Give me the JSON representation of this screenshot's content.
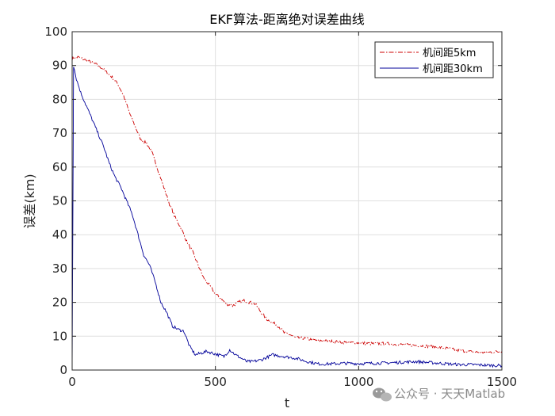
{
  "chart_data": {
    "type": "line",
    "title": "EKF算法-距离绝对误差曲线",
    "xlabel": "t",
    "ylabel": "误差(km)",
    "xlim": [
      0,
      1500
    ],
    "ylim": [
      0,
      100
    ],
    "xticks": [
      0,
      500,
      1000,
      1500
    ],
    "yticks": [
      0,
      10,
      20,
      30,
      40,
      50,
      60,
      70,
      80,
      90,
      100
    ],
    "grid": true,
    "legend_position": "top-right",
    "series": [
      {
        "name": "机间距5km",
        "color": "#cc0000",
        "style": "dash-dot",
        "x": [
          0,
          20,
          50,
          80,
          100,
          120,
          140,
          160,
          180,
          200,
          220,
          240,
          260,
          280,
          300,
          320,
          340,
          360,
          380,
          400,
          420,
          440,
          460,
          480,
          500,
          520,
          540,
          560,
          580,
          600,
          620,
          640,
          660,
          680,
          700,
          720,
          740,
          760,
          780,
          800,
          850,
          900,
          950,
          1000,
          1050,
          1100,
          1150,
          1200,
          1250,
          1300,
          1350,
          1400,
          1450,
          1500
        ],
        "y": [
          92,
          92.5,
          91.5,
          90.5,
          89.5,
          88,
          86.5,
          84.5,
          81,
          76,
          72,
          68,
          67,
          64,
          59,
          54,
          49,
          45,
          42,
          38,
          35,
          31,
          27,
          25,
          22.5,
          21,
          19.5,
          19,
          20,
          20.5,
          20,
          19.5,
          17,
          15,
          14,
          13,
          11,
          10.5,
          9.5,
          9.5,
          8.8,
          8.5,
          8.2,
          8,
          7.8,
          7.8,
          7.5,
          7.3,
          7,
          6.5,
          5.8,
          5.3,
          5.2,
          5.5
        ]
      },
      {
        "name": "机间距30km",
        "color": "#000099",
        "style": "solid",
        "x": [
          0,
          5,
          15,
          30,
          50,
          70,
          90,
          110,
          130,
          150,
          170,
          190,
          210,
          230,
          250,
          270,
          290,
          310,
          330,
          350,
          370,
          390,
          410,
          430,
          450,
          470,
          490,
          510,
          530,
          550,
          570,
          590,
          610,
          630,
          660,
          700,
          740,
          780,
          820,
          860,
          900,
          950,
          1000,
          1050,
          1100,
          1150,
          1200,
          1250,
          1300,
          1350,
          1400,
          1450,
          1500
        ],
        "y": [
          0,
          90,
          86,
          82,
          78,
          74,
          70,
          66,
          61,
          57,
          54,
          50,
          46,
          40,
          34,
          31,
          26,
          20,
          17,
          13,
          12,
          11.5,
          7,
          4.5,
          5,
          5.5,
          5,
          4.5,
          4,
          6,
          4.5,
          3.5,
          2.5,
          2.5,
          3,
          4.5,
          4,
          3.5,
          2.5,
          1.8,
          1.8,
          2,
          1.9,
          2,
          2.1,
          2.3,
          2.5,
          2.2,
          1.9,
          1.6,
          1.6,
          1.4,
          1.3
        ]
      }
    ]
  },
  "watermark": {
    "icon": "wechat-icon",
    "text": "公众号 · 天天Matlab"
  }
}
